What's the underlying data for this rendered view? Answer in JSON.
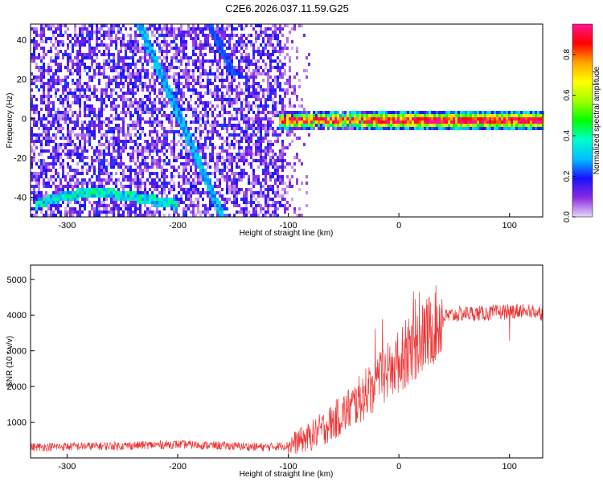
{
  "title": "C2E6.2026.037.11.59.G25",
  "chart_data": [
    {
      "type": "heatmap",
      "xlabel": "Height of straight line (km)",
      "ylabel": "Frequency (Hz)",
      "xlim": [
        -333,
        130
      ],
      "ylim": [
        -50,
        48
      ],
      "xticks": [
        -300,
        -200,
        -100,
        0,
        100
      ],
      "yticks": [
        -40,
        -20,
        0,
        20,
        40
      ],
      "colorbar": {
        "label": "Normalized spectral amplitude",
        "range": [
          0.0,
          0.95
        ],
        "ticks": [
          0.0,
          0.2,
          0.4,
          0.6,
          0.8
        ],
        "colors": [
          "#e8d8f8",
          "#8a2be2",
          "#1a10ff",
          "#00bfff",
          "#00ffcc",
          "#00ff00",
          "#a0ff00",
          "#ffff00",
          "#ffa500",
          "#ff0000",
          "#ff1493"
        ]
      },
      "features": {
        "noise_region_x": [
          -333,
          -105
        ],
        "fading_noise_x": [
          -105,
          -80
        ],
        "descending_trace": {
          "x": [
            -235,
            -160
          ],
          "y": [
            48,
            -50
          ]
        },
        "upper_trace": {
          "x": [
            -160,
            -145
          ],
          "y": [
            48,
            35
          ]
        },
        "lower_arc": {
          "x": [
            -330,
            -230
          ],
          "y": [
            -42,
            -36
          ]
        },
        "carrier_line": {
          "x": [
            -110,
            130
          ],
          "y": 0
        }
      }
    },
    {
      "type": "line",
      "xlabel": "Height of straight line (km)",
      "ylabel": "SNR (10 * v/v)",
      "xlim": [
        -333,
        130
      ],
      "ylim": [
        0,
        5400
      ],
      "xticks": [
        -300,
        -200,
        -100,
        0,
        100
      ],
      "yticks": [
        1000,
        2000,
        3000,
        4000,
        5000
      ],
      "series": [
        {
          "name": "SNR",
          "color": "#ee3333",
          "x": [
            -333,
            -300,
            -250,
            -200,
            -150,
            -120,
            -100,
            -80,
            -60,
            -40,
            -20,
            0,
            20,
            40,
            60,
            80,
            100,
            115,
            130
          ],
          "y": [
            300,
            320,
            340,
            380,
            330,
            300,
            350,
            600,
            1000,
            1500,
            2100,
            2700,
            3300,
            3950,
            4050,
            4050,
            4100,
            4150,
            4050
          ]
        }
      ]
    }
  ]
}
